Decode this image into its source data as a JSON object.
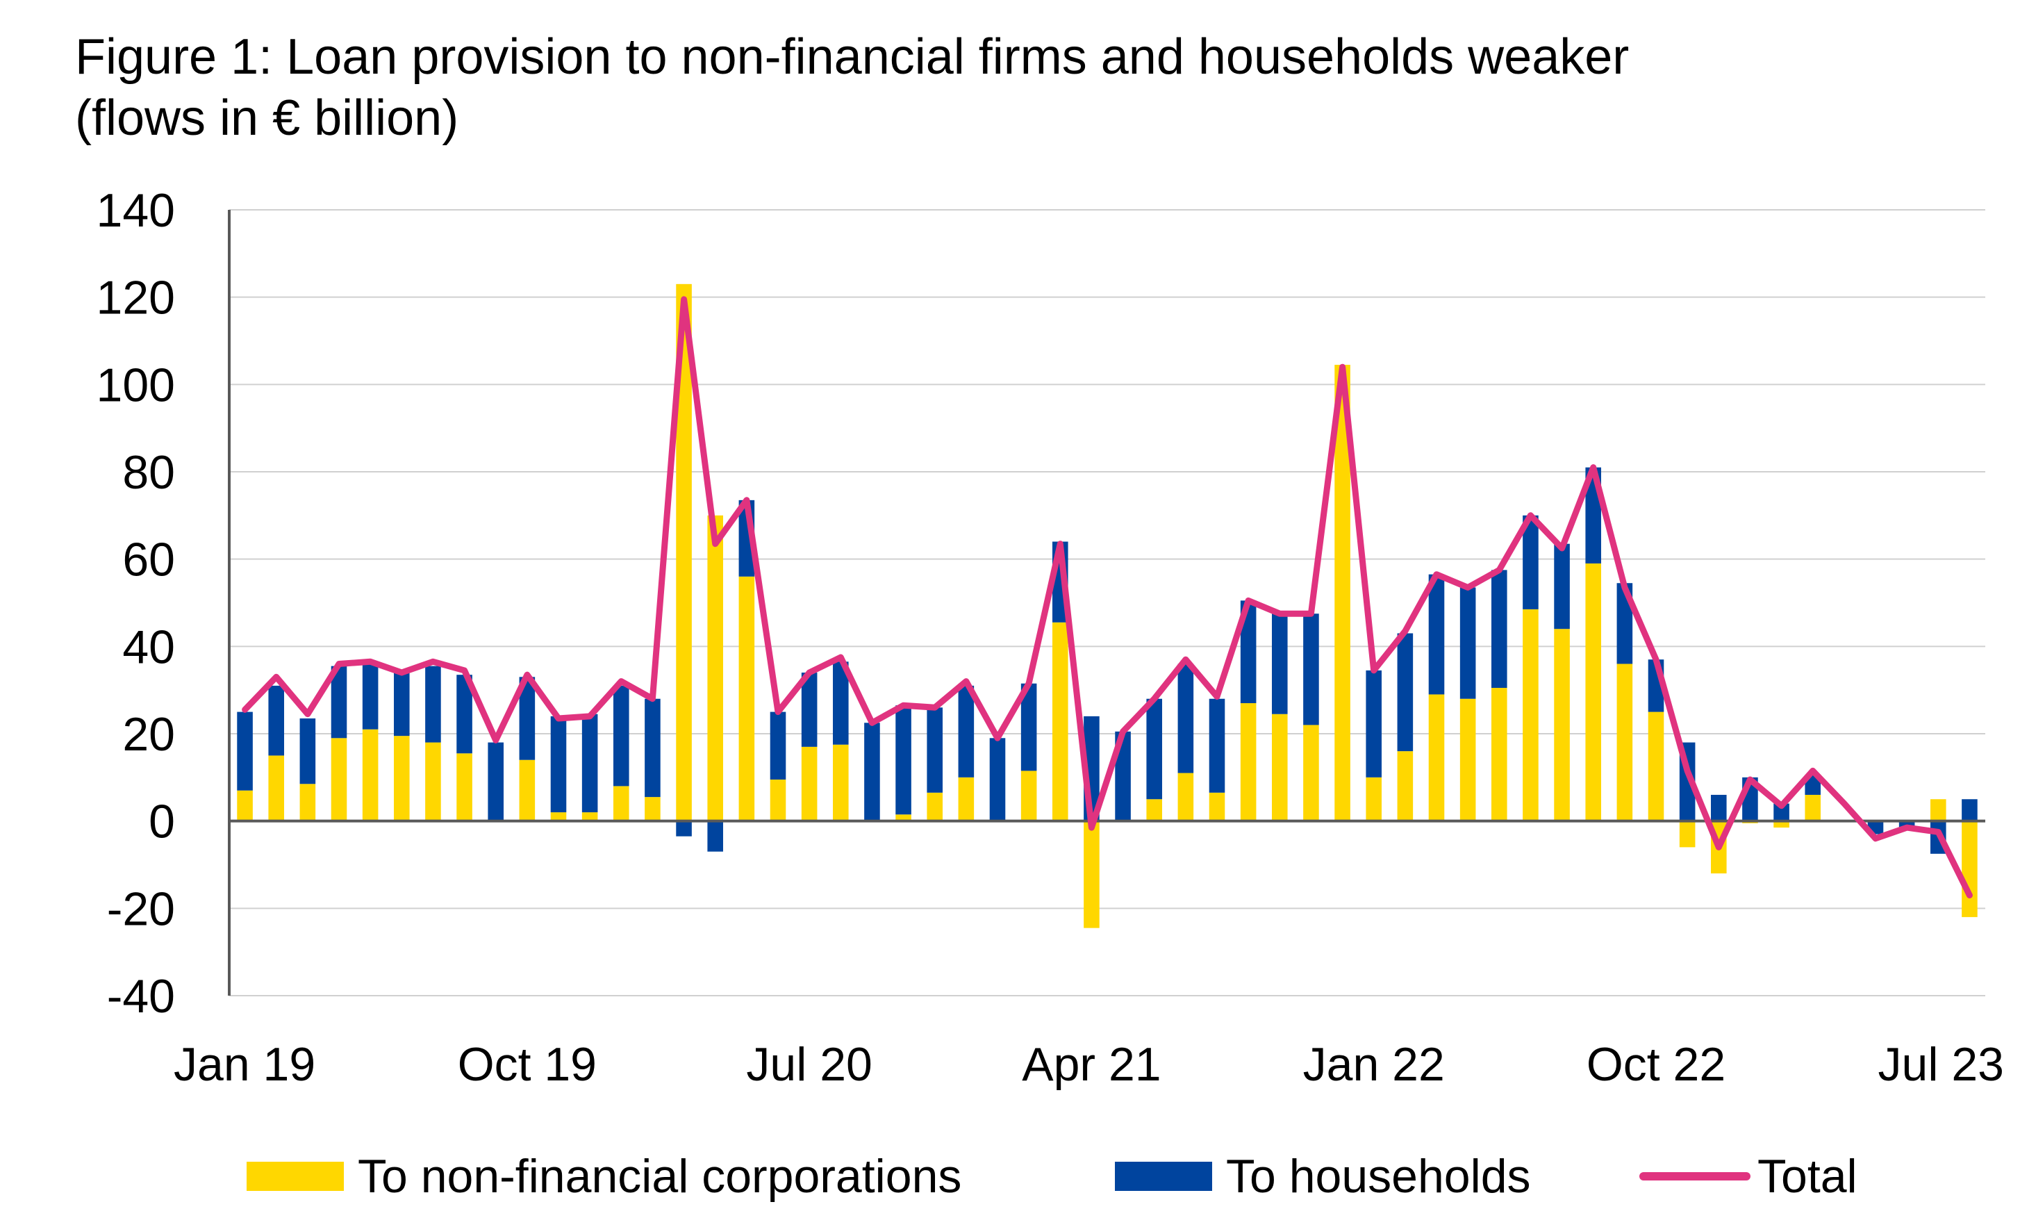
{
  "title": {
    "line1": "Figure 1: Loan provision to non-financial firms and households weaker",
    "line2": "(flows in € billion)"
  },
  "colors": {
    "nfc": "#FFD700",
    "households": "#00449E",
    "total": "#E0337F",
    "grid": "#D0D0D0",
    "axis": "#595959"
  },
  "legend": {
    "nfc": "To non-financial corporations",
    "households": "To households",
    "total": "Total"
  },
  "chart_data": {
    "type": "bar",
    "stacked": true,
    "ylim": [
      -40,
      140
    ],
    "yticks": [
      140,
      120,
      100,
      80,
      60,
      40,
      20,
      0,
      -20,
      -40
    ],
    "xtick_labels": [
      "Jan 19",
      "Oct 19",
      "Jul 20",
      "Apr 21",
      "Jan 22",
      "Oct 22",
      "Jul 23"
    ],
    "x": [
      "Jan 19",
      "Feb 19",
      "Mar 19",
      "Apr 19",
      "May 19",
      "Jun 19",
      "Jul 19",
      "Aug 19",
      "Sep 19",
      "Oct 19",
      "Nov 19",
      "Dec 19",
      "Jan 20",
      "Feb 20",
      "Mar 20",
      "Apr 20",
      "May 20",
      "Jun 20",
      "Jul 20",
      "Aug 20",
      "Sep 20",
      "Oct 20",
      "Nov 20",
      "Dec 20",
      "Jan 21",
      "Feb 21",
      "Mar 21",
      "Apr 21",
      "May 21",
      "Jun 21",
      "Jul 21",
      "Aug 21",
      "Sep 21",
      "Oct 21",
      "Nov 21",
      "Dec 21",
      "Jan 22",
      "Feb 22",
      "Mar 22",
      "Apr 22",
      "May 22",
      "Jun 22",
      "Jul 22",
      "Aug 22",
      "Sep 22",
      "Oct 22",
      "Nov 22",
      "Dec 22",
      "Jan 23",
      "Feb 23",
      "Mar 23",
      "Apr 23",
      "May 23",
      "Jun 23",
      "Jul 23",
      "Aug 23"
    ],
    "series": [
      {
        "name": "To non-financial corporations",
        "kind": "bar",
        "values": [
          7,
          15,
          8.5,
          19,
          21,
          19.5,
          18,
          15.5,
          0,
          14,
          2,
          2,
          8,
          5.5,
          123,
          70,
          56,
          9.5,
          17,
          17.5,
          0,
          1.5,
          6.5,
          10,
          0,
          11.5,
          45.5,
          -24.5,
          0,
          5,
          11,
          6.5,
          27,
          24.5,
          22,
          104.5,
          10,
          16,
          29,
          28,
          30.5,
          48.5,
          44,
          59,
          36,
          25,
          -6,
          -12,
          -0.5,
          -1.5,
          6,
          0,
          0,
          0,
          5,
          -22
        ]
      },
      {
        "name": "To households",
        "kind": "bar",
        "values": [
          18,
          16,
          15,
          16.5,
          15.5,
          14.5,
          17.5,
          18,
          18,
          19,
          22,
          22.5,
          23,
          22.5,
          -3.5,
          -7,
          17.5,
          15.5,
          17,
          19,
          22.5,
          25,
          19.5,
          21,
          19,
          20,
          18.5,
          24,
          20.5,
          23,
          25,
          21.5,
          23.5,
          23,
          25.5,
          0,
          24.5,
          27,
          27.5,
          25.5,
          27,
          21.5,
          19.5,
          22,
          18.5,
          12,
          18,
          6,
          10,
          4,
          4.5,
          0,
          -3,
          -1.5,
          -7.5,
          5
        ]
      },
      {
        "name": "Total",
        "kind": "line",
        "values": [
          25.5,
          33,
          24.5,
          36,
          36.5,
          34,
          36.5,
          34.5,
          18.5,
          33.5,
          23.5,
          24,
          32,
          28,
          119.5,
          63.5,
          73.5,
          25,
          34,
          37.5,
          22.5,
          26.5,
          26,
          32,
          19,
          31.5,
          63.5,
          -1.5,
          20.5,
          28,
          37,
          28.5,
          50.5,
          47.5,
          47.5,
          104,
          34.5,
          43.5,
          56.5,
          53.5,
          57.5,
          70,
          62.5,
          81,
          53.5,
          37,
          11.5,
          -6,
          9.5,
          3.5,
          11.5,
          4,
          -4,
          -1.5,
          -2.5,
          -17
        ]
      }
    ]
  }
}
